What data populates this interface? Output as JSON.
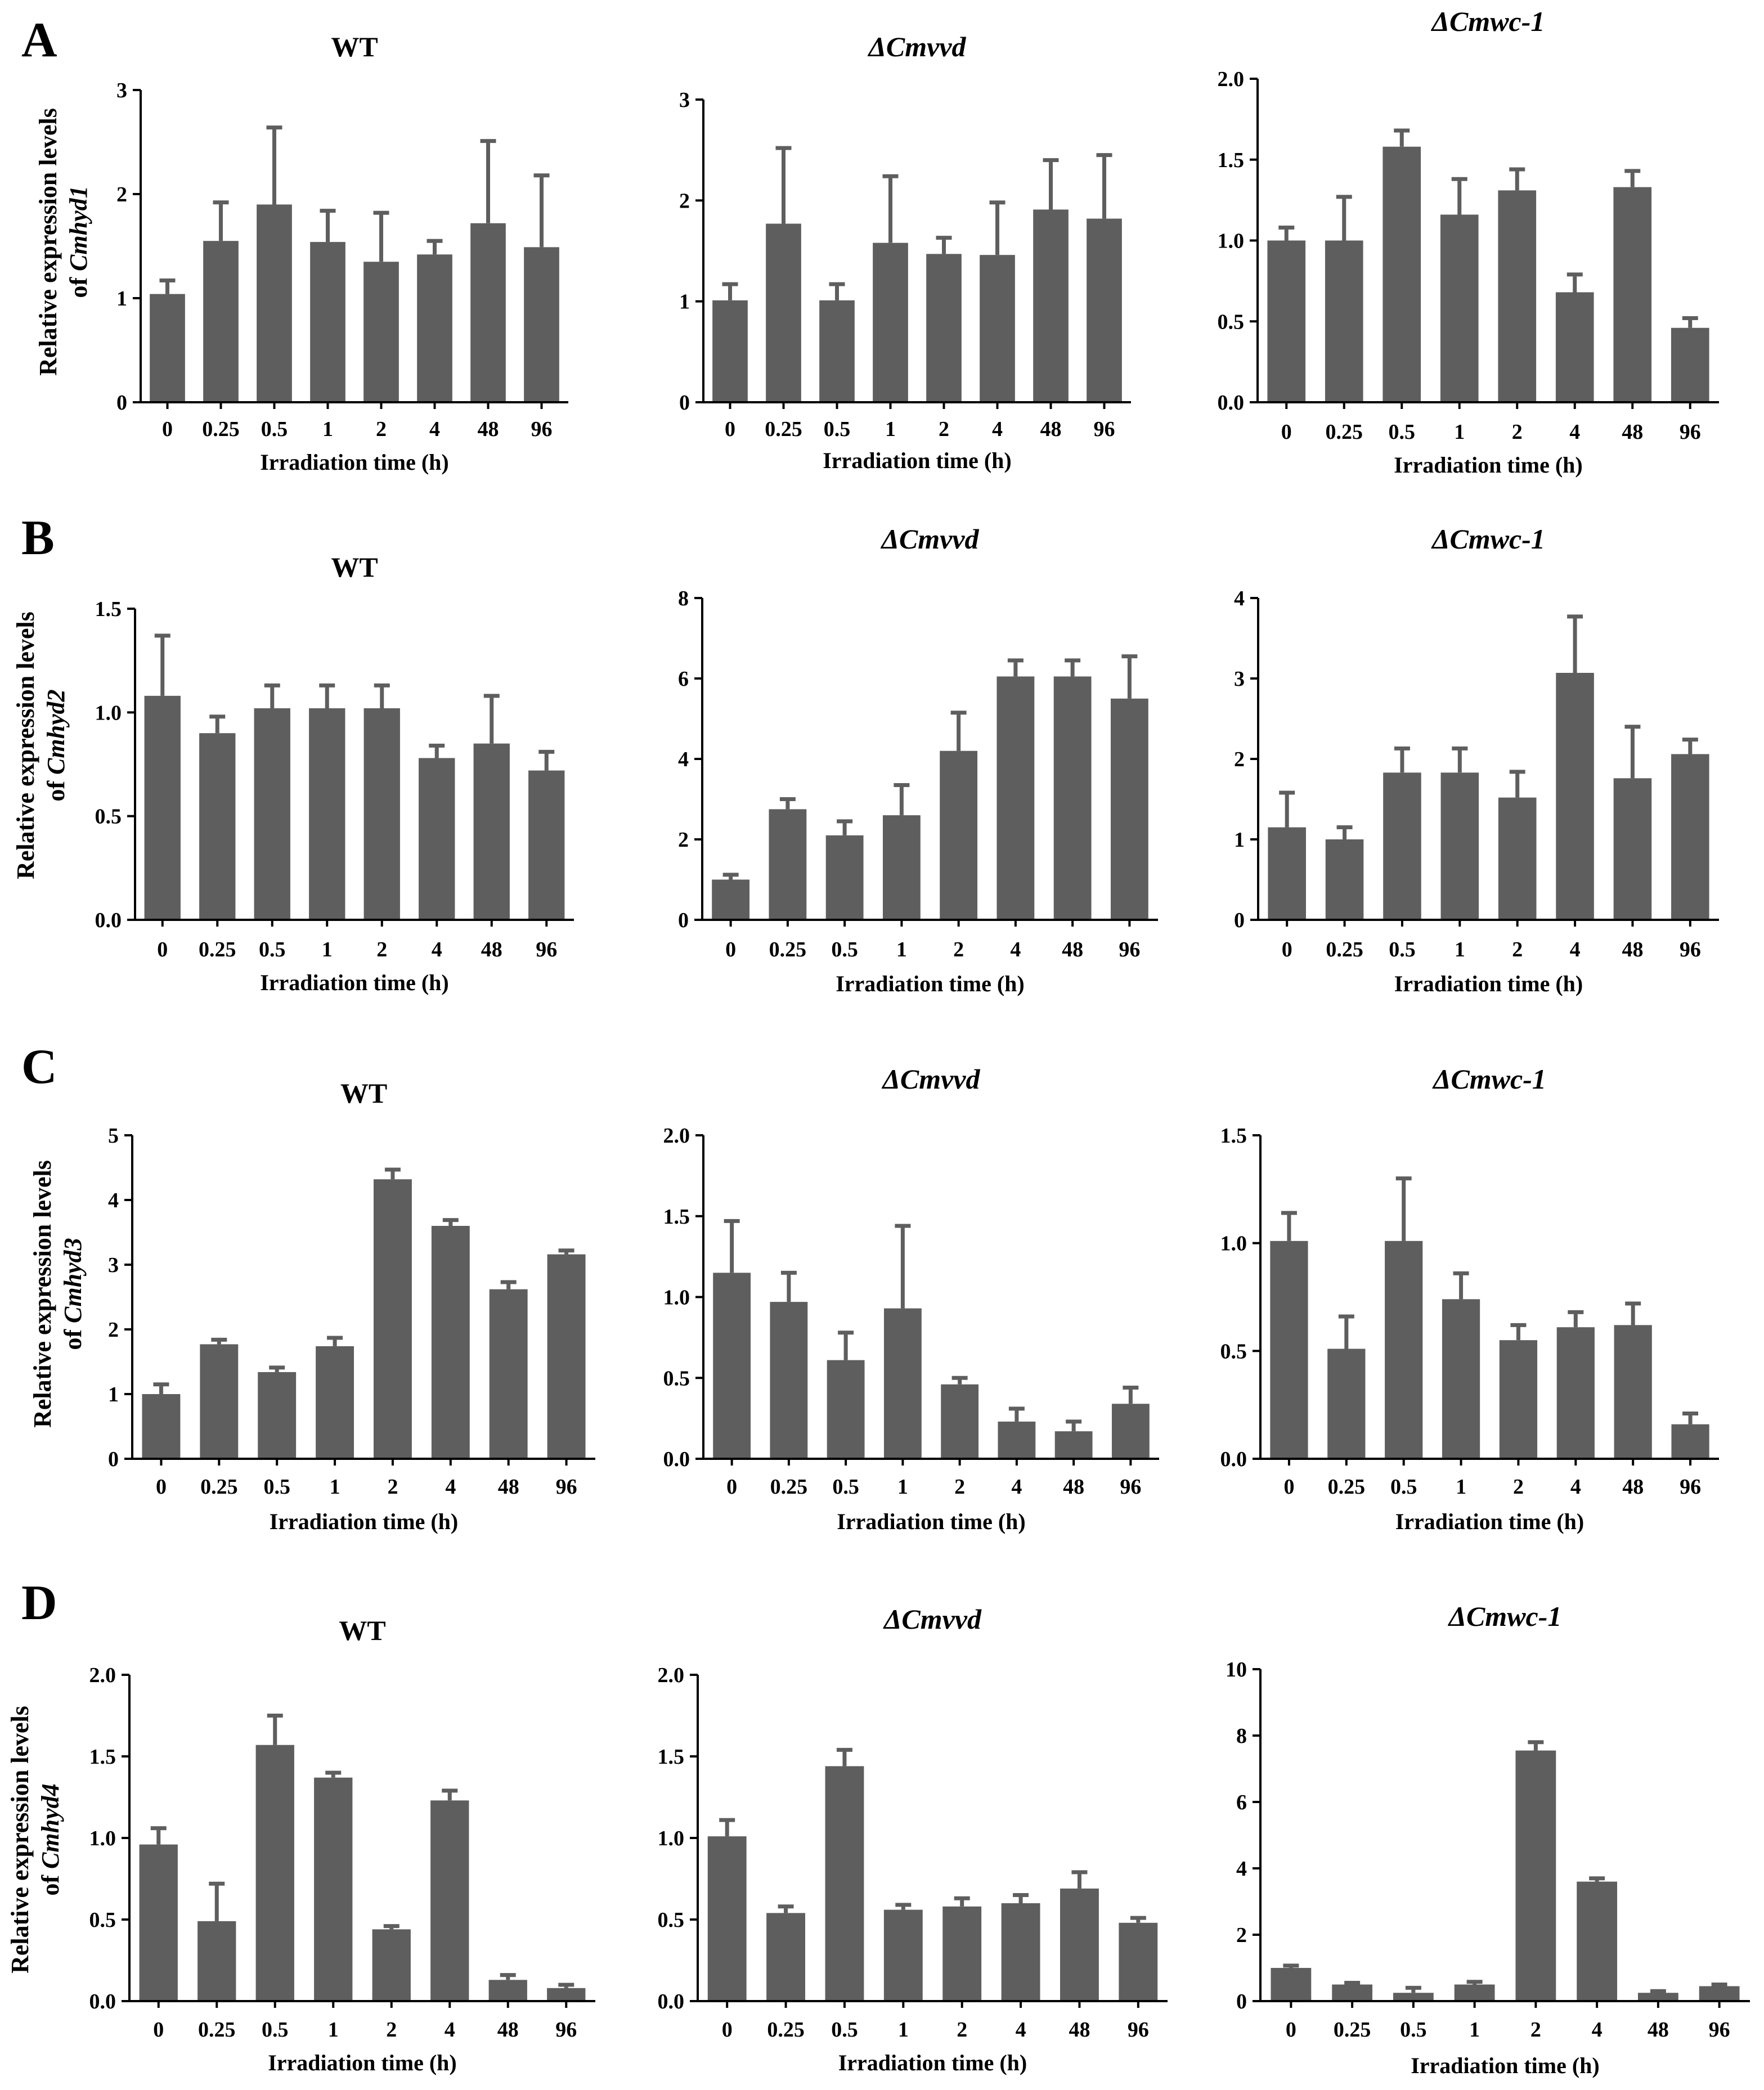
{
  "figure": {
    "x_axis_label": "Irradiation time (h)",
    "y_axis_label_prefix": "Relative expression levels",
    "colors": {
      "bar": "#5e5e5e",
      "axis": "#000000",
      "background": "#ffffff"
    }
  },
  "rows": [
    {
      "letter": "A",
      "ylabel_of": "of",
      "ylabel_gene": "Cmhyd1"
    },
    {
      "letter": "B",
      "ylabel_of": "of",
      "ylabel_gene": "Cmhyd2"
    },
    {
      "letter": "C",
      "ylabel_of": "of",
      "ylabel_gene": "Cmhyd3"
    },
    {
      "letter": "D",
      "ylabel_of": "of",
      "ylabel_gene": "Cmhyd4"
    }
  ],
  "chart_data": [
    {
      "type": "bar",
      "row": "A",
      "gene": "Cmhyd1",
      "title": "WT",
      "title_italic": false,
      "xlabel": "Irradiation time (h)",
      "ylabel": "Relative expression levels of Cmhyd1",
      "categories": [
        "0",
        "0.25",
        "0.5",
        "1",
        "2",
        "4",
        "48",
        "96"
      ],
      "values": [
        1.04,
        1.55,
        1.9,
        1.54,
        1.35,
        1.42,
        1.72,
        1.49
      ],
      "errors": [
        0.13,
        0.37,
        0.74,
        0.3,
        0.47,
        0.13,
        0.79,
        0.69
      ],
      "ylim": [
        0,
        3
      ],
      "yticks": [
        "0",
        "1",
        "2",
        "3"
      ]
    },
    {
      "type": "bar",
      "row": "A",
      "gene": "Cmhyd1",
      "title": "ΔCmvvd",
      "title_italic": true,
      "xlabel": "Irradiation time (h)",
      "ylabel": "Relative expression levels of Cmhyd1",
      "categories": [
        "0",
        "0.25",
        "0.5",
        "1",
        "2",
        "4",
        "48",
        "96"
      ],
      "values": [
        1.01,
        1.77,
        1.01,
        1.58,
        1.47,
        1.46,
        1.91,
        1.82
      ],
      "errors": [
        0.16,
        0.75,
        0.16,
        0.66,
        0.16,
        0.52,
        0.49,
        0.63
      ],
      "ylim": [
        0,
        3
      ],
      "yticks": [
        "0",
        "1",
        "2",
        "3"
      ]
    },
    {
      "type": "bar",
      "row": "A",
      "gene": "Cmhyd1",
      "title": "ΔCmwc-1",
      "title_italic": true,
      "xlabel": "Irradiation time (h)",
      "ylabel": "Relative expression levels of Cmhyd1",
      "categories": [
        "0",
        "0.25",
        "0.5",
        "1",
        "2",
        "4",
        "48",
        "96"
      ],
      "values": [
        1.0,
        1.0,
        1.58,
        1.16,
        1.31,
        0.68,
        1.33,
        0.46
      ],
      "errors": [
        0.08,
        0.27,
        0.1,
        0.22,
        0.13,
        0.11,
        0.1,
        0.06
      ],
      "ylim": [
        0,
        2
      ],
      "yticks": [
        "0.0",
        "0.5",
        "1.0",
        "1.5",
        "2.0"
      ]
    },
    {
      "type": "bar",
      "row": "B",
      "gene": "Cmhyd2",
      "title": "WT",
      "title_italic": false,
      "xlabel": "Irradiation time (h)",
      "ylabel": "Relative expression levels of Cmhyd2",
      "categories": [
        "0",
        "0.25",
        "0.5",
        "1",
        "2",
        "4",
        "48",
        "96"
      ],
      "values": [
        1.08,
        0.9,
        1.02,
        1.02,
        1.02,
        0.78,
        0.85,
        0.72
      ],
      "errors": [
        0.29,
        0.08,
        0.11,
        0.11,
        0.11,
        0.06,
        0.23,
        0.09
      ],
      "ylim": [
        0,
        1.5
      ],
      "yticks": [
        "0.0",
        "0.5",
        "1.0",
        "1.5"
      ]
    },
    {
      "type": "bar",
      "row": "B",
      "gene": "Cmhyd2",
      "title": "ΔCmvvd",
      "title_italic": true,
      "xlabel": "Irradiation time (h)",
      "ylabel": "Relative expression levels of Cmhyd2",
      "categories": [
        "0",
        "0.25",
        "0.5",
        "1",
        "2",
        "4",
        "48",
        "96"
      ],
      "values": [
        1.0,
        2.75,
        2.1,
        2.6,
        4.2,
        6.05,
        6.05,
        5.5
      ],
      "errors": [
        0.12,
        0.25,
        0.35,
        0.75,
        0.95,
        0.4,
        0.4,
        1.05
      ],
      "ylim": [
        0,
        8
      ],
      "yticks": [
        "0",
        "2",
        "4",
        "6",
        "8"
      ]
    },
    {
      "type": "bar",
      "row": "B",
      "gene": "Cmhyd2",
      "title": "ΔCmwc-1",
      "title_italic": true,
      "xlabel": "Irradiation time (h)",
      "ylabel": "Relative expression levels of Cmhyd2",
      "categories": [
        "0",
        "0.25",
        "0.5",
        "1",
        "2",
        "4",
        "48",
        "96"
      ],
      "values": [
        1.15,
        1.0,
        1.83,
        1.83,
        1.52,
        3.07,
        1.76,
        2.06
      ],
      "errors": [
        0.43,
        0.15,
        0.3,
        0.3,
        0.32,
        0.7,
        0.64,
        0.18
      ],
      "ylim": [
        0,
        4
      ],
      "yticks": [
        "0",
        "1",
        "2",
        "3",
        "4"
      ]
    },
    {
      "type": "bar",
      "row": "C",
      "gene": "Cmhyd3",
      "title": "WT",
      "title_italic": false,
      "xlabel": "Irradiation time (h)",
      "ylabel": "Relative expression levels of Cmhyd3",
      "categories": [
        "0",
        "0.25",
        "0.5",
        "1",
        "2",
        "4",
        "48",
        "96"
      ],
      "values": [
        1.0,
        1.77,
        1.34,
        1.74,
        4.32,
        3.6,
        2.62,
        3.16
      ],
      "errors": [
        0.15,
        0.07,
        0.07,
        0.13,
        0.15,
        0.09,
        0.11,
        0.06
      ],
      "ylim": [
        0,
        5
      ],
      "yticks": [
        "0",
        "1",
        "2",
        "3",
        "4",
        "5"
      ]
    },
    {
      "type": "bar",
      "row": "C",
      "gene": "Cmhyd3",
      "title": "ΔCmvvd",
      "title_italic": true,
      "xlabel": "Irradiation time (h)",
      "ylabel": "Relative expression levels of Cmhyd3",
      "categories": [
        "0",
        "0.25",
        "0.5",
        "1",
        "2",
        "4",
        "48",
        "96"
      ],
      "values": [
        1.15,
        0.97,
        0.61,
        0.93,
        0.46,
        0.23,
        0.17,
        0.34
      ],
      "errors": [
        0.32,
        0.18,
        0.17,
        0.51,
        0.04,
        0.08,
        0.06,
        0.1
      ],
      "ylim": [
        0,
        2
      ],
      "yticks": [
        "0.0",
        "0.5",
        "1.0",
        "1.5",
        "2.0"
      ]
    },
    {
      "type": "bar",
      "row": "C",
      "gene": "Cmhyd3",
      "title": "ΔCmwc-1",
      "title_italic": true,
      "xlabel": "Irradiation time (h)",
      "ylabel": "Relative expression levels of Cmhyd3",
      "categories": [
        "0",
        "0.25",
        "0.5",
        "1",
        "2",
        "4",
        "48",
        "96"
      ],
      "values": [
        1.01,
        0.51,
        1.01,
        0.74,
        0.55,
        0.61,
        0.62,
        0.16
      ],
      "errors": [
        0.13,
        0.15,
        0.29,
        0.12,
        0.07,
        0.07,
        0.1,
        0.05
      ],
      "ylim": [
        0,
        1.5
      ],
      "yticks": [
        "0.0",
        "0.5",
        "1.0",
        "1.5"
      ]
    },
    {
      "type": "bar",
      "row": "D",
      "gene": "Cmhyd4",
      "title": "WT",
      "title_italic": false,
      "xlabel": "Irradiation time (h)",
      "ylabel": "Relative expression levels of Cmhyd4",
      "categories": [
        "0",
        "0.25",
        "0.5",
        "1",
        "2",
        "4",
        "48",
        "96"
      ],
      "values": [
        0.96,
        0.49,
        1.57,
        1.37,
        0.44,
        1.23,
        0.13,
        0.08
      ],
      "errors": [
        0.1,
        0.23,
        0.18,
        0.03,
        0.02,
        0.06,
        0.03,
        0.02
      ],
      "ylim": [
        0,
        2
      ],
      "yticks": [
        "0.0",
        "0.5",
        "1.0",
        "1.5",
        "2.0"
      ]
    },
    {
      "type": "bar",
      "row": "D",
      "gene": "Cmhyd4",
      "title": "ΔCmvvd",
      "title_italic": true,
      "xlabel": "Irradiation time (h)",
      "ylabel": "Relative expression levels of Cmhyd4",
      "categories": [
        "0",
        "0.25",
        "0.5",
        "1",
        "2",
        "4",
        "48",
        "96"
      ],
      "values": [
        1.01,
        0.54,
        1.44,
        0.56,
        0.58,
        0.6,
        0.69,
        0.48
      ],
      "errors": [
        0.1,
        0.04,
        0.1,
        0.03,
        0.05,
        0.05,
        0.1,
        0.03
      ],
      "ylim": [
        0,
        2
      ],
      "yticks": [
        "0.0",
        "0.5",
        "1.0",
        "1.5",
        "2.0"
      ]
    },
    {
      "type": "bar",
      "row": "D",
      "gene": "Cmhyd4",
      "title": "ΔCmwc-1",
      "title_italic": true,
      "xlabel": "Irradiation time (h)",
      "ylabel": "Relative expression levels of Cmhyd4",
      "categories": [
        "0",
        "0.25",
        "0.5",
        "1",
        "2",
        "4",
        "48",
        "96"
      ],
      "values": [
        1.0,
        0.5,
        0.25,
        0.5,
        7.55,
        3.6,
        0.25,
        0.45
      ],
      "errors": [
        0.07,
        0.05,
        0.15,
        0.08,
        0.25,
        0.1,
        0.05,
        0.05
      ],
      "ylim": [
        0,
        10
      ],
      "yticks": [
        "0",
        "2",
        "4",
        "6",
        "8",
        "10"
      ]
    }
  ]
}
